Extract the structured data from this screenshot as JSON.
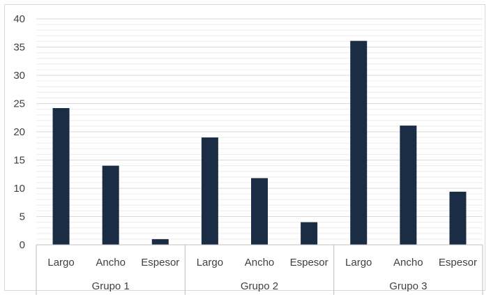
{
  "chart_data": {
    "type": "bar",
    "title": "",
    "xlabel": "",
    "ylabel": "",
    "ylim": [
      0,
      40
    ],
    "y_ticks": [
      "0",
      "5",
      "10",
      "15",
      "20",
      "25",
      "30",
      "35",
      "40"
    ],
    "grid": true,
    "groups": [
      {
        "name": "Grupo 1",
        "categories": [
          "Largo",
          "Ancho",
          "Espesor"
        ],
        "values": [
          24.2,
          14,
          1
        ]
      },
      {
        "name": "Grupo 2",
        "categories": [
          "Largo",
          "Ancho",
          "Espesor"
        ],
        "values": [
          19,
          11.8,
          4
        ]
      },
      {
        "name": "Grupo 3",
        "categories": [
          "Largo",
          "Ancho",
          "Espesor"
        ],
        "values": [
          36.1,
          21.1,
          9.4
        ]
      }
    ],
    "colors": {
      "bar": "#1b2d45",
      "major_grid": "#d9d9d9",
      "minor_grid": "#ececec",
      "axis": "#bfbfbf",
      "text": "#404040"
    }
  }
}
